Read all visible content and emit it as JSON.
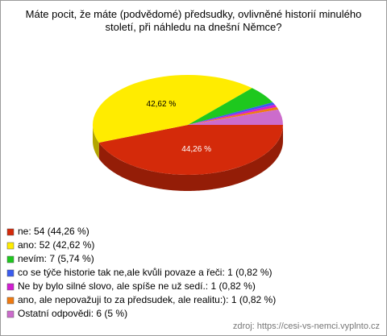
{
  "chart_data": {
    "type": "pie",
    "title": "Máte pocit, že máte (podvědomé) předsudky, ovlivněné historií minulého století, při náhledu na dnešní Němce?",
    "categories": [
      "ne: 54 (44,26 %)",
      "ano: 52 (42,62 %)",
      "nevím: 7 (5,74 %)",
      "co se týče historie tak ne,ale kvůli povaze a řeči: 1 (0,82 %)",
      "Ne by bylo silné slovo, ale spíše ne už sedí.: 1 (0,82 %)",
      "ano, ale nepovažuji to za předsudek, ale realitu:): 1 (0,82 %)",
      "Ostatní odpovědi: 6 (5 %)"
    ],
    "values": [
      44.26,
      42.62,
      5.74,
      0.82,
      0.82,
      0.82,
      5
    ],
    "value_labels": [
      "44,26 %",
      "42,62 %",
      null,
      null,
      null,
      null,
      null
    ],
    "colors": [
      "#d42a0a",
      "#ffec00",
      "#1ec81e",
      "#3a5cf0",
      "#d21ed2",
      "#f07a10",
      "#cc6ccc"
    ],
    "source": "zdroj: https://cesi-vs-nemci.vyplnto.cz"
  }
}
